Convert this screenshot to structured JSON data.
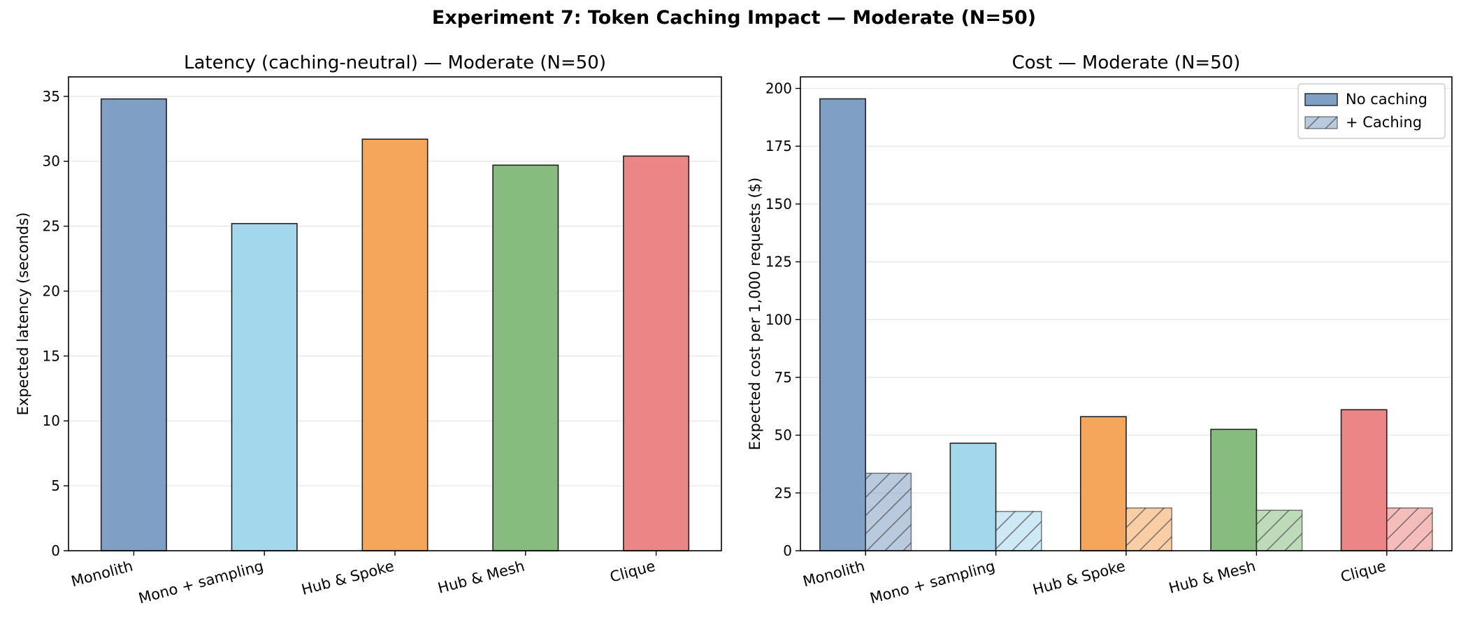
{
  "suptitle": "Experiment 7: Token Caching Impact — Moderate (N=50)",
  "colors": {
    "series": [
      "#7f9fc4",
      "#a3d7ec",
      "#f6a65a",
      "#86bd7e",
      "#ec8585"
    ],
    "edge": "#222222",
    "grid": "#e6e6e6"
  },
  "chart_data": [
    {
      "type": "bar",
      "title": "Latency (caching-neutral) — Moderate (N=50)",
      "xlabel": "",
      "ylabel": "Expected latency (seconds)",
      "categories": [
        "Monolith",
        "Mono + sampling",
        "Hub & Spoke",
        "Hub & Mesh",
        "Clique"
      ],
      "values": [
        34.8,
        25.2,
        31.7,
        29.7,
        30.4
      ],
      "ylim": [
        0,
        36.5
      ],
      "yticks": [
        0,
        5,
        10,
        15,
        20,
        25,
        30,
        35
      ],
      "grid": "y"
    },
    {
      "type": "bar",
      "title": "Cost — Moderate (N=50)",
      "xlabel": "",
      "ylabel": "Expected cost per 1,000 requests ($)",
      "categories": [
        "Monolith",
        "Mono + sampling",
        "Hub & Spoke",
        "Hub & Mesh",
        "Clique"
      ],
      "series": [
        {
          "name": "No caching",
          "values": [
            195.5,
            46.5,
            58.0,
            52.5,
            61.0
          ]
        },
        {
          "name": "+ Caching",
          "values": [
            33.5,
            17.0,
            18.5,
            17.5,
            18.5
          ],
          "hatch": "/"
        }
      ],
      "ylim": [
        0,
        205
      ],
      "yticks": [
        0,
        25,
        50,
        75,
        100,
        125,
        150,
        175,
        200
      ],
      "grid": "y",
      "legend": "top-right"
    }
  ]
}
